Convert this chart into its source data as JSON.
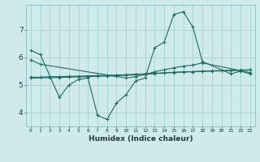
{
  "bg_color": "#ceeaea",
  "grid_color": "#a8d5d5",
  "line_color": "#1e6b64",
  "series1_x": [
    0,
    1,
    3,
    4,
    5,
    6,
    7,
    8,
    9,
    10,
    11,
    12,
    13,
    14,
    15,
    16,
    17,
    18,
    21,
    22,
    23
  ],
  "series1_y": [
    6.25,
    6.1,
    4.55,
    5.0,
    5.2,
    5.25,
    3.9,
    3.75,
    4.35,
    4.65,
    5.15,
    5.25,
    6.35,
    6.55,
    7.55,
    7.65,
    7.1,
    5.85,
    5.4,
    5.5,
    5.4
  ],
  "series2_x": [
    0,
    1,
    2,
    3,
    4,
    5,
    6,
    7,
    8,
    9,
    10,
    11,
    12,
    13,
    14,
    15,
    16,
    17,
    18,
    19,
    20,
    21,
    22,
    23
  ],
  "series2_y": [
    5.28,
    5.28,
    5.3,
    5.3,
    5.31,
    5.32,
    5.33,
    5.34,
    5.35,
    5.36,
    5.37,
    5.39,
    5.4,
    5.42,
    5.44,
    5.46,
    5.47,
    5.48,
    5.5,
    5.51,
    5.52,
    5.53,
    5.54,
    5.55
  ],
  "series3_x": [
    0,
    1,
    10,
    11,
    12,
    13,
    14,
    15,
    16,
    17,
    18,
    22,
    23
  ],
  "series3_y": [
    5.9,
    5.75,
    5.25,
    5.3,
    5.38,
    5.48,
    5.55,
    5.62,
    5.68,
    5.72,
    5.8,
    5.52,
    5.45
  ],
  "series4_x": [
    0,
    2,
    3,
    4,
    5,
    6,
    7,
    8,
    9,
    10,
    11,
    12,
    13,
    14,
    15,
    16,
    17,
    18,
    19,
    20,
    21,
    22,
    23
  ],
  "series4_y": [
    5.25,
    5.26,
    5.27,
    5.28,
    5.29,
    5.3,
    5.31,
    5.32,
    5.33,
    5.35,
    5.37,
    5.39,
    5.41,
    5.43,
    5.45,
    5.47,
    5.48,
    5.49,
    5.5,
    5.51,
    5.52,
    5.53,
    5.54
  ],
  "xlabel": "Humidex (Indice chaleur)",
  "xticks": [
    0,
    1,
    2,
    3,
    4,
    5,
    6,
    7,
    8,
    9,
    10,
    11,
    12,
    13,
    14,
    15,
    16,
    17,
    18,
    19,
    20,
    21,
    22,
    23
  ],
  "xtick_labels": [
    "0",
    "1",
    "2",
    "3",
    "4",
    "5",
    "6",
    "7",
    "8",
    "9",
    "10",
    "11",
    "12",
    "13",
    "14",
    "15",
    "16",
    "17",
    "18",
    "19",
    "20",
    "21",
    "22",
    "23"
  ],
  "yticks": [
    4,
    5,
    6,
    7
  ],
  "ylim": [
    3.5,
    7.9
  ],
  "xlim": [
    -0.5,
    23.5
  ]
}
